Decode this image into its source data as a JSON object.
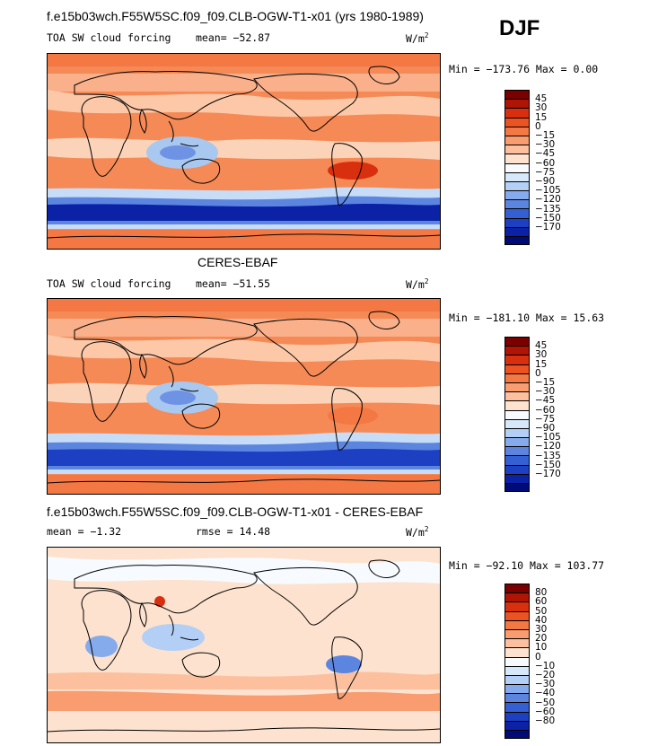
{
  "season": "DJF",
  "panels": [
    {
      "title": "f.e15b03wch.F55W5SC.f09_f09.CLB-OGW-T1-x01 (yrs 1980-1989)",
      "field_label": "TOA SW cloud forcing",
      "stat1": "mean=  −52.87",
      "stat2": "",
      "units_base": "W/m",
      "units_exp": "2",
      "minmax": "Min = −173.76  Max =    0.00",
      "colors": [
        "#7a0000",
        "#b01405",
        "#d8300f",
        "#ec5222",
        "#f47844",
        "#f99c70",
        "#fcc09e",
        "#fde3cf",
        "#f7fbff",
        "#d8e8fb",
        "#b3cff5",
        "#86abec",
        "#5c85e0",
        "#3560d4",
        "#1d3fc2",
        "#0b22a7",
        "#000a78"
      ],
      "labels": [
        "45",
        "30",
        "15",
        "0",
        "−15",
        "−30",
        "−45",
        "−60",
        "−75",
        "−90",
        "−105",
        "−120",
        "−135",
        "−150",
        "−170"
      ]
    },
    {
      "title": "CERES-EBAF",
      "field_label": "TOA SW cloud forcing",
      "stat1": "mean=  −51.55",
      "stat2": "",
      "units_base": "W/m",
      "units_exp": "2",
      "minmax": "Min = −181.10  Max =   15.63",
      "colors": [
        "#7a0000",
        "#b01405",
        "#d8300f",
        "#ec5222",
        "#f47844",
        "#f99c70",
        "#fcc09e",
        "#fde3cf",
        "#f7fbff",
        "#d8e8fb",
        "#b3cff5",
        "#86abec",
        "#5c85e0",
        "#3560d4",
        "#1d3fc2",
        "#0b22a7",
        "#000a78"
      ],
      "labels": [
        "45",
        "30",
        "15",
        "0",
        "−15",
        "−30",
        "−45",
        "−60",
        "−75",
        "−90",
        "−105",
        "−120",
        "−135",
        "−150",
        "−170"
      ]
    },
    {
      "title": "f.e15b03wch.F55W5SC.f09_f09.CLB-OGW-T1-x01 - CERES-EBAF",
      "field_label": "",
      "stat1": "mean =   −1.32",
      "stat2": "rmse =   14.48",
      "units_base": "W/m",
      "units_exp": "2",
      "minmax": "Min = −92.10  Max = 103.77",
      "colors": [
        "#7a0000",
        "#b01405",
        "#d8300f",
        "#ec5222",
        "#f47844",
        "#f99c70",
        "#fcc09e",
        "#fde3cf",
        "#f7fbff",
        "#d8e8fb",
        "#b3cff5",
        "#86abec",
        "#5c85e0",
        "#3560d4",
        "#1d3fc2",
        "#0b22a7",
        "#000a78"
      ],
      "labels": [
        "80",
        "60",
        "50",
        "40",
        "30",
        "20",
        "10",
        "0",
        "−10",
        "−20",
        "−30",
        "−40",
        "−50",
        "−60",
        "−80"
      ]
    }
  ],
  "chart_data": [
    {
      "type": "heatmap",
      "title": "TOA SW cloud forcing",
      "subtitle": "f.e15b03wch.F55W5SC.f09_f09.CLB-OGW-T1-x01 (yrs 1980-1989)",
      "season": "DJF",
      "units": "W/m2",
      "mean": -52.87,
      "min": -173.76,
      "max": 0.0,
      "contour_levels": [
        45,
        30,
        15,
        0,
        -15,
        -30,
        -45,
        -60,
        -75,
        -90,
        -105,
        -120,
        -135,
        -150,
        -170
      ]
    },
    {
      "type": "heatmap",
      "title": "TOA SW cloud forcing",
      "subtitle": "CERES-EBAF",
      "season": "DJF",
      "units": "W/m2",
      "mean": -51.55,
      "min": -181.1,
      "max": 15.63,
      "contour_levels": [
        45,
        30,
        15,
        0,
        -15,
        -30,
        -45,
        -60,
        -75,
        -90,
        -105,
        -120,
        -135,
        -150,
        -170
      ]
    },
    {
      "type": "heatmap",
      "title": "f.e15b03wch.F55W5SC.f09_f09.CLB-OGW-T1-x01 - CERES-EBAF",
      "season": "DJF",
      "units": "W/m2",
      "mean": -1.32,
      "rmse": 14.48,
      "min": -92.1,
      "max": 103.77,
      "contour_levels": [
        80,
        60,
        50,
        40,
        30,
        20,
        10,
        0,
        -10,
        -20,
        -30,
        -40,
        -50,
        -60,
        -80
      ]
    }
  ]
}
